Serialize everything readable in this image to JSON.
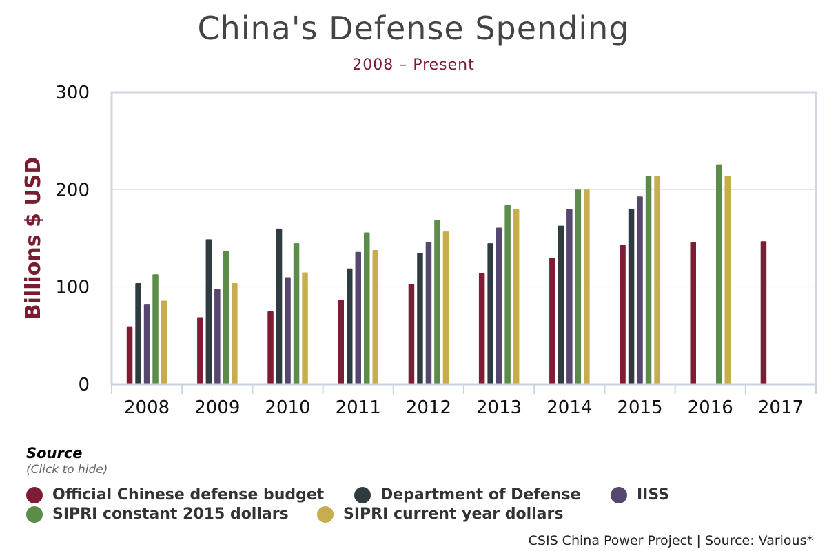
{
  "chart_data": {
    "type": "bar",
    "title": "China's Defense Spending",
    "subtitle": "2008 – Present",
    "ylabel": "Billions $ USD",
    "xlabel": "",
    "ylim": [
      0,
      300
    ],
    "yticks": [
      0,
      100,
      200,
      300
    ],
    "categories": [
      "2008",
      "2009",
      "2010",
      "2011",
      "2012",
      "2013",
      "2014",
      "2015",
      "2016",
      "2017"
    ],
    "series": [
      {
        "name": "Official Chinese defense budget",
        "color": "#7d1c32",
        "values": [
          59,
          69,
          75,
          87,
          103,
          114,
          130,
          143,
          146,
          147
        ]
      },
      {
        "name": "Department of Defense",
        "color": "#2e3b41",
        "values": [
          104,
          149,
          160,
          119,
          135,
          145,
          163,
          180,
          null,
          null
        ]
      },
      {
        "name": "IISS",
        "color": "#56476e",
        "values": [
          82,
          98,
          110,
          136,
          146,
          161,
          180,
          193,
          null,
          null
        ]
      },
      {
        "name": "SIPRI constant 2015 dollars",
        "color": "#5b8c4a",
        "values": [
          113,
          137,
          145,
          156,
          169,
          184,
          200,
          214,
          226,
          null
        ]
      },
      {
        "name": "SIPRI current year dollars",
        "color": "#c8ad4f",
        "values": [
          86,
          104,
          115,
          138,
          157,
          180,
          200,
          214,
          214,
          null
        ]
      }
    ],
    "grid": true,
    "legend_placement": "bottom-left"
  },
  "legend": {
    "heading": "Source",
    "hint": "(Click to hide)"
  },
  "credits": "CSIS China Power Project | Source: Various*"
}
